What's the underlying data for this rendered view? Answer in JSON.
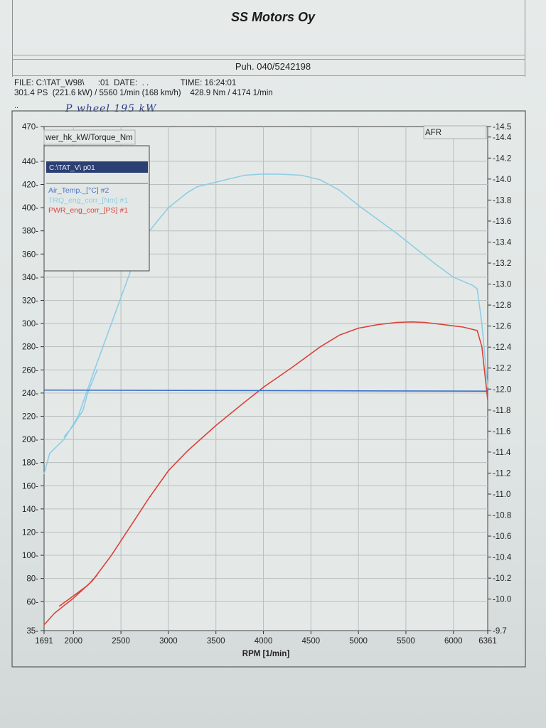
{
  "header": {
    "title": "SS Motors Oy",
    "phone": "Puh. 040/5242198",
    "file_line": "FILE: C:\\TAT_W98\\      :01  DATE:  . .              TIME: 16:24:01",
    "summary_line": "301.4 PS  (221.6 kW) / 5560 1/min (168 km/h)    428.9 Nm / 4174 1/min",
    "dots": "..",
    "handwritten_note": "P wheel  195 kW"
  },
  "chart_data": {
    "type": "line",
    "xlabel": "RPM  [1/min]",
    "left_axis_title": "wer_hk_kW/Torque_Nm",
    "right_axis_title": "AFR",
    "xlim": [
      1691,
      6361
    ],
    "ylim_left": [
      35,
      470
    ],
    "ylim_right": [
      9.7,
      14.5
    ],
    "x_ticks": [
      1691,
      2000,
      2500,
      3000,
      3500,
      4000,
      4500,
      5000,
      5500,
      6000,
      6361
    ],
    "y_ticks_left": [
      35,
      60,
      80,
      100,
      120,
      140,
      160,
      180,
      200,
      220,
      240,
      260,
      280,
      300,
      320,
      340,
      360,
      380,
      400,
      420,
      440,
      470
    ],
    "y_ticks_right": [
      9.7,
      10.0,
      10.2,
      10.4,
      10.6,
      10.8,
      11.0,
      11.2,
      11.4,
      11.6,
      11.8,
      12.0,
      12.2,
      12.4,
      12.6,
      12.8,
      13.0,
      13.2,
      13.4,
      13.6,
      13.8,
      14.0,
      14.2,
      14.4,
      14.5
    ],
    "grid": true,
    "legend_position": "top-left",
    "legend": {
      "selected": "C:\\TAT_V\\          p01",
      "entries": [
        "Air_Temp._[°C] #2",
        "TRQ_eng_corr_[Nm] #1",
        "PWR_eng_corr_[PS] #1"
      ]
    },
    "series": [
      {
        "name": "TRQ_eng_corr_[Nm] #1",
        "color": "#8ecde3",
        "x": [
          1691,
          1750,
          1900,
          2050,
          2200,
          2400,
          2600,
          2800,
          3000,
          3200,
          3300,
          3500,
          3800,
          4000,
          4174,
          4400,
          4600,
          4800,
          5000,
          5200,
          5400,
          5600,
          5800,
          6000,
          6200,
          6250,
          6300,
          6361
        ],
        "values": [
          170,
          188,
          200,
          220,
          255,
          300,
          345,
          380,
          400,
          413,
          418,
          422,
          428,
          429,
          428.9,
          428,
          424,
          415,
          402,
          390,
          378,
          365,
          352,
          340,
          333,
          330,
          300,
          245
        ]
      },
      {
        "name": "TRQ_eng_corr_[Nm] #1 (run 2)",
        "color": "#8ecde3",
        "x": [
          1900,
          2000,
          2100,
          2150,
          2200,
          2250
        ],
        "values": [
          202,
          212,
          225,
          240,
          250,
          260
        ]
      },
      {
        "name": "PWR_eng_corr_[PS] #1",
        "color": "#d9433a",
        "x": [
          1691,
          1800,
          2000,
          2200,
          2400,
          2600,
          2800,
          3000,
          3200,
          3500,
          3800,
          4000,
          4300,
          4600,
          4800,
          5000,
          5200,
          5400,
          5560,
          5700,
          5900,
          6100,
          6250,
          6300,
          6361
        ],
        "values": [
          40,
          50,
          63,
          78,
          100,
          125,
          150,
          173,
          190,
          212,
          232,
          245,
          262,
          280,
          290,
          296,
          299,
          301,
          301.4,
          301,
          299,
          297,
          294,
          280,
          234
        ]
      },
      {
        "name": "PWR_eng_corr_[PS] #1 (run 2)",
        "color": "#d9433a",
        "x": [
          1850,
          1950,
          2050,
          2150,
          2250
        ],
        "values": [
          56,
          62,
          68,
          74,
          83
        ]
      },
      {
        "name": "AFR",
        "color": "#3a6fc9",
        "axis": "right",
        "x": [
          1691,
          6361
        ],
        "values": [
          11.99,
          11.98
        ]
      }
    ]
  }
}
